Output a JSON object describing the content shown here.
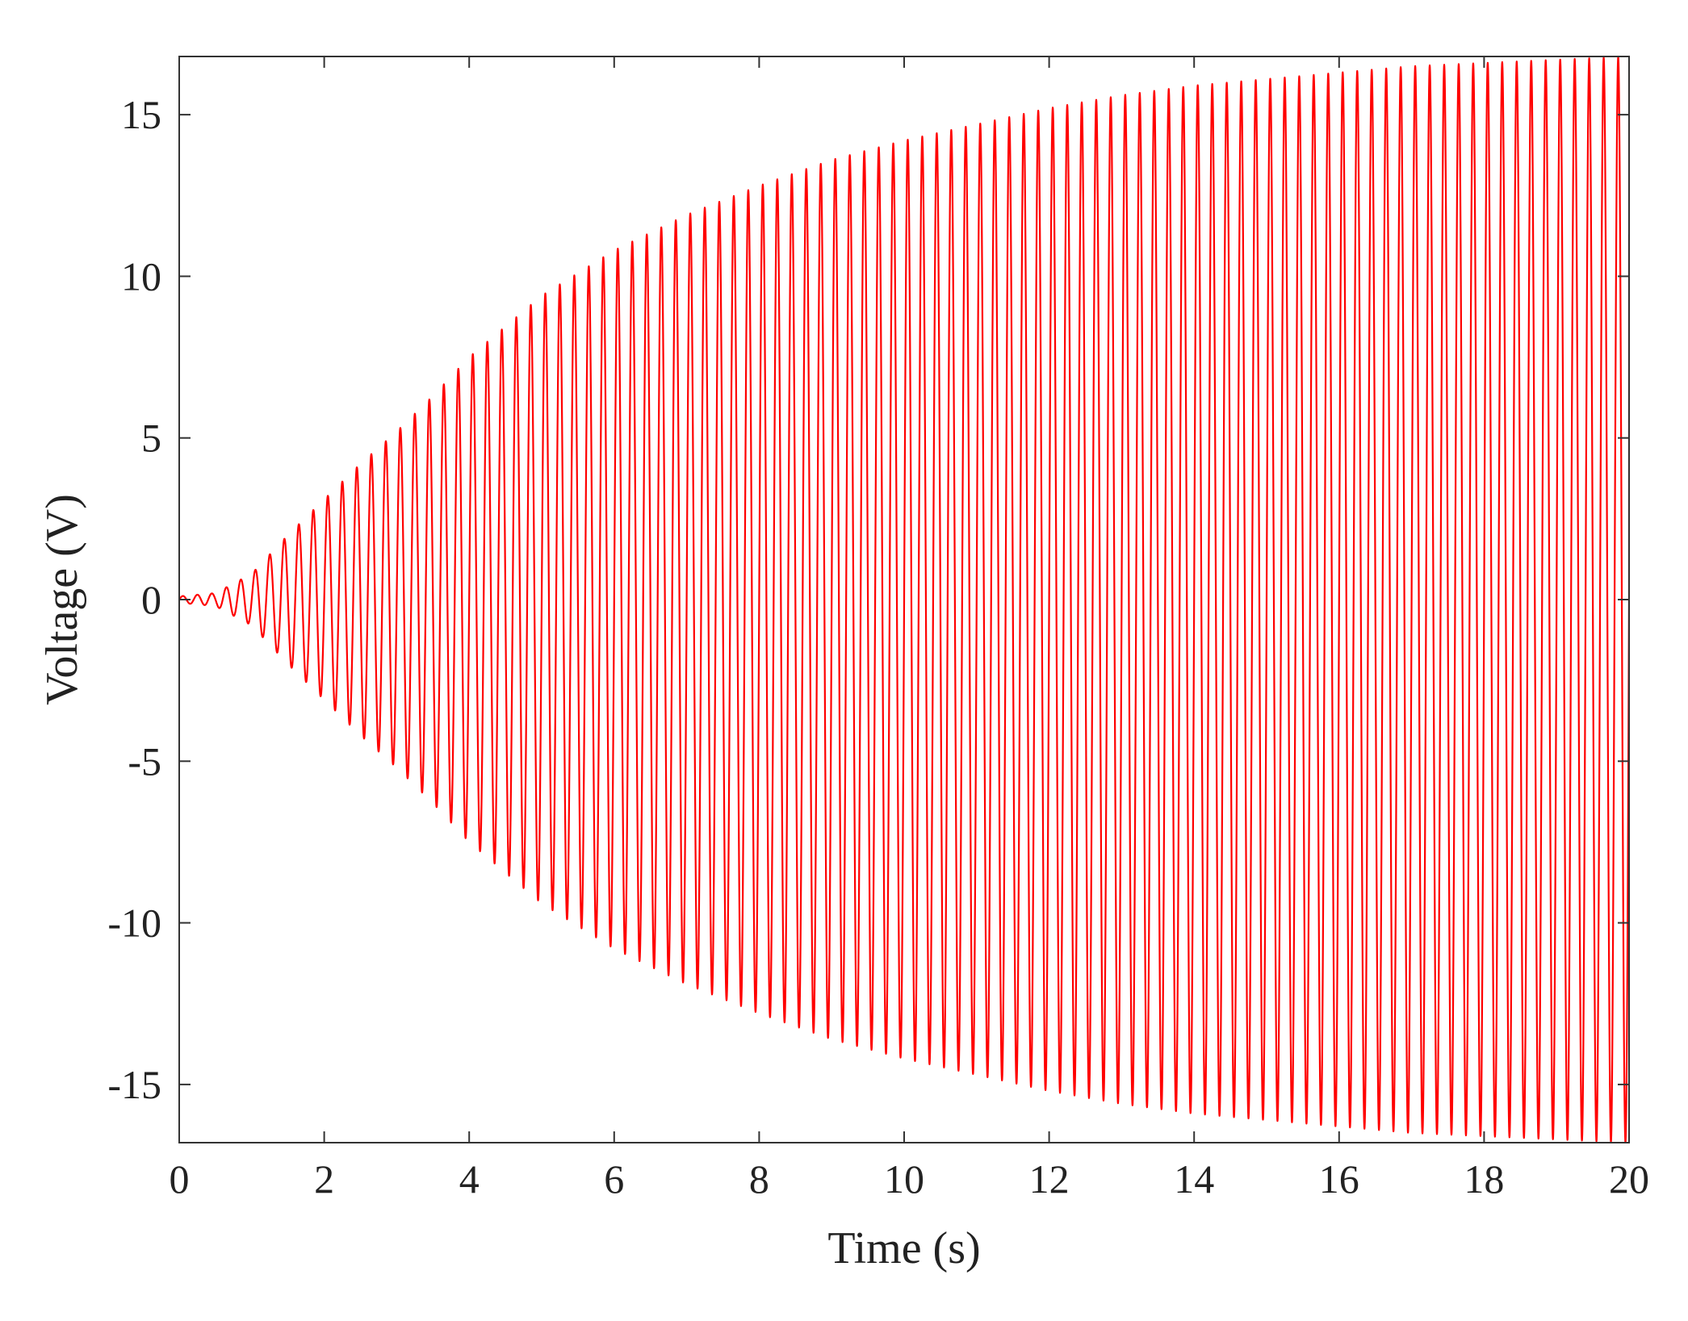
{
  "chart_data": {
    "type": "line",
    "title": "",
    "xlabel": "Time (s)",
    "ylabel": "Voltage (V)",
    "xlim": [
      0,
      20
    ],
    "ylim": [
      -16.8,
      16.8
    ],
    "xticks": [
      0,
      2,
      4,
      6,
      8,
      10,
      12,
      14,
      16,
      18,
      20
    ],
    "yticks": [
      15,
      10,
      5,
      0,
      -5,
      -10,
      -15
    ],
    "xtick_labels": [
      "0",
      "2",
      "4",
      "6",
      "8",
      "10",
      "12",
      "14",
      "16",
      "18",
      "20"
    ],
    "ytick_labels": [
      "15",
      "10",
      "5",
      "0",
      "-5",
      "-10",
      "-15"
    ],
    "grid": false,
    "legend": null,
    "series": [
      {
        "name": "",
        "color": "#ff0000",
        "signal": "oscillation with growing amplitude",
        "oscillation_period_s": 0.2,
        "envelope": {
          "t": [
            0,
            0.5,
            1,
            1.5,
            2,
            2.5,
            3,
            3.5,
            4,
            5,
            6,
            7,
            8,
            9,
            10,
            11,
            12,
            13,
            14,
            15,
            16,
            17,
            18,
            19,
            20
          ],
          "amplitude": [
            0.1,
            0.2,
            0.8,
            2.0,
            3.1,
            4.2,
            5.2,
            6.3,
            7.5,
            9.4,
            10.8,
            11.9,
            12.8,
            13.6,
            14.2,
            14.7,
            15.2,
            15.6,
            15.9,
            16.1,
            16.3,
            16.5,
            16.6,
            16.7,
            16.8
          ]
        },
        "end_value": 11.3
      }
    ]
  }
}
